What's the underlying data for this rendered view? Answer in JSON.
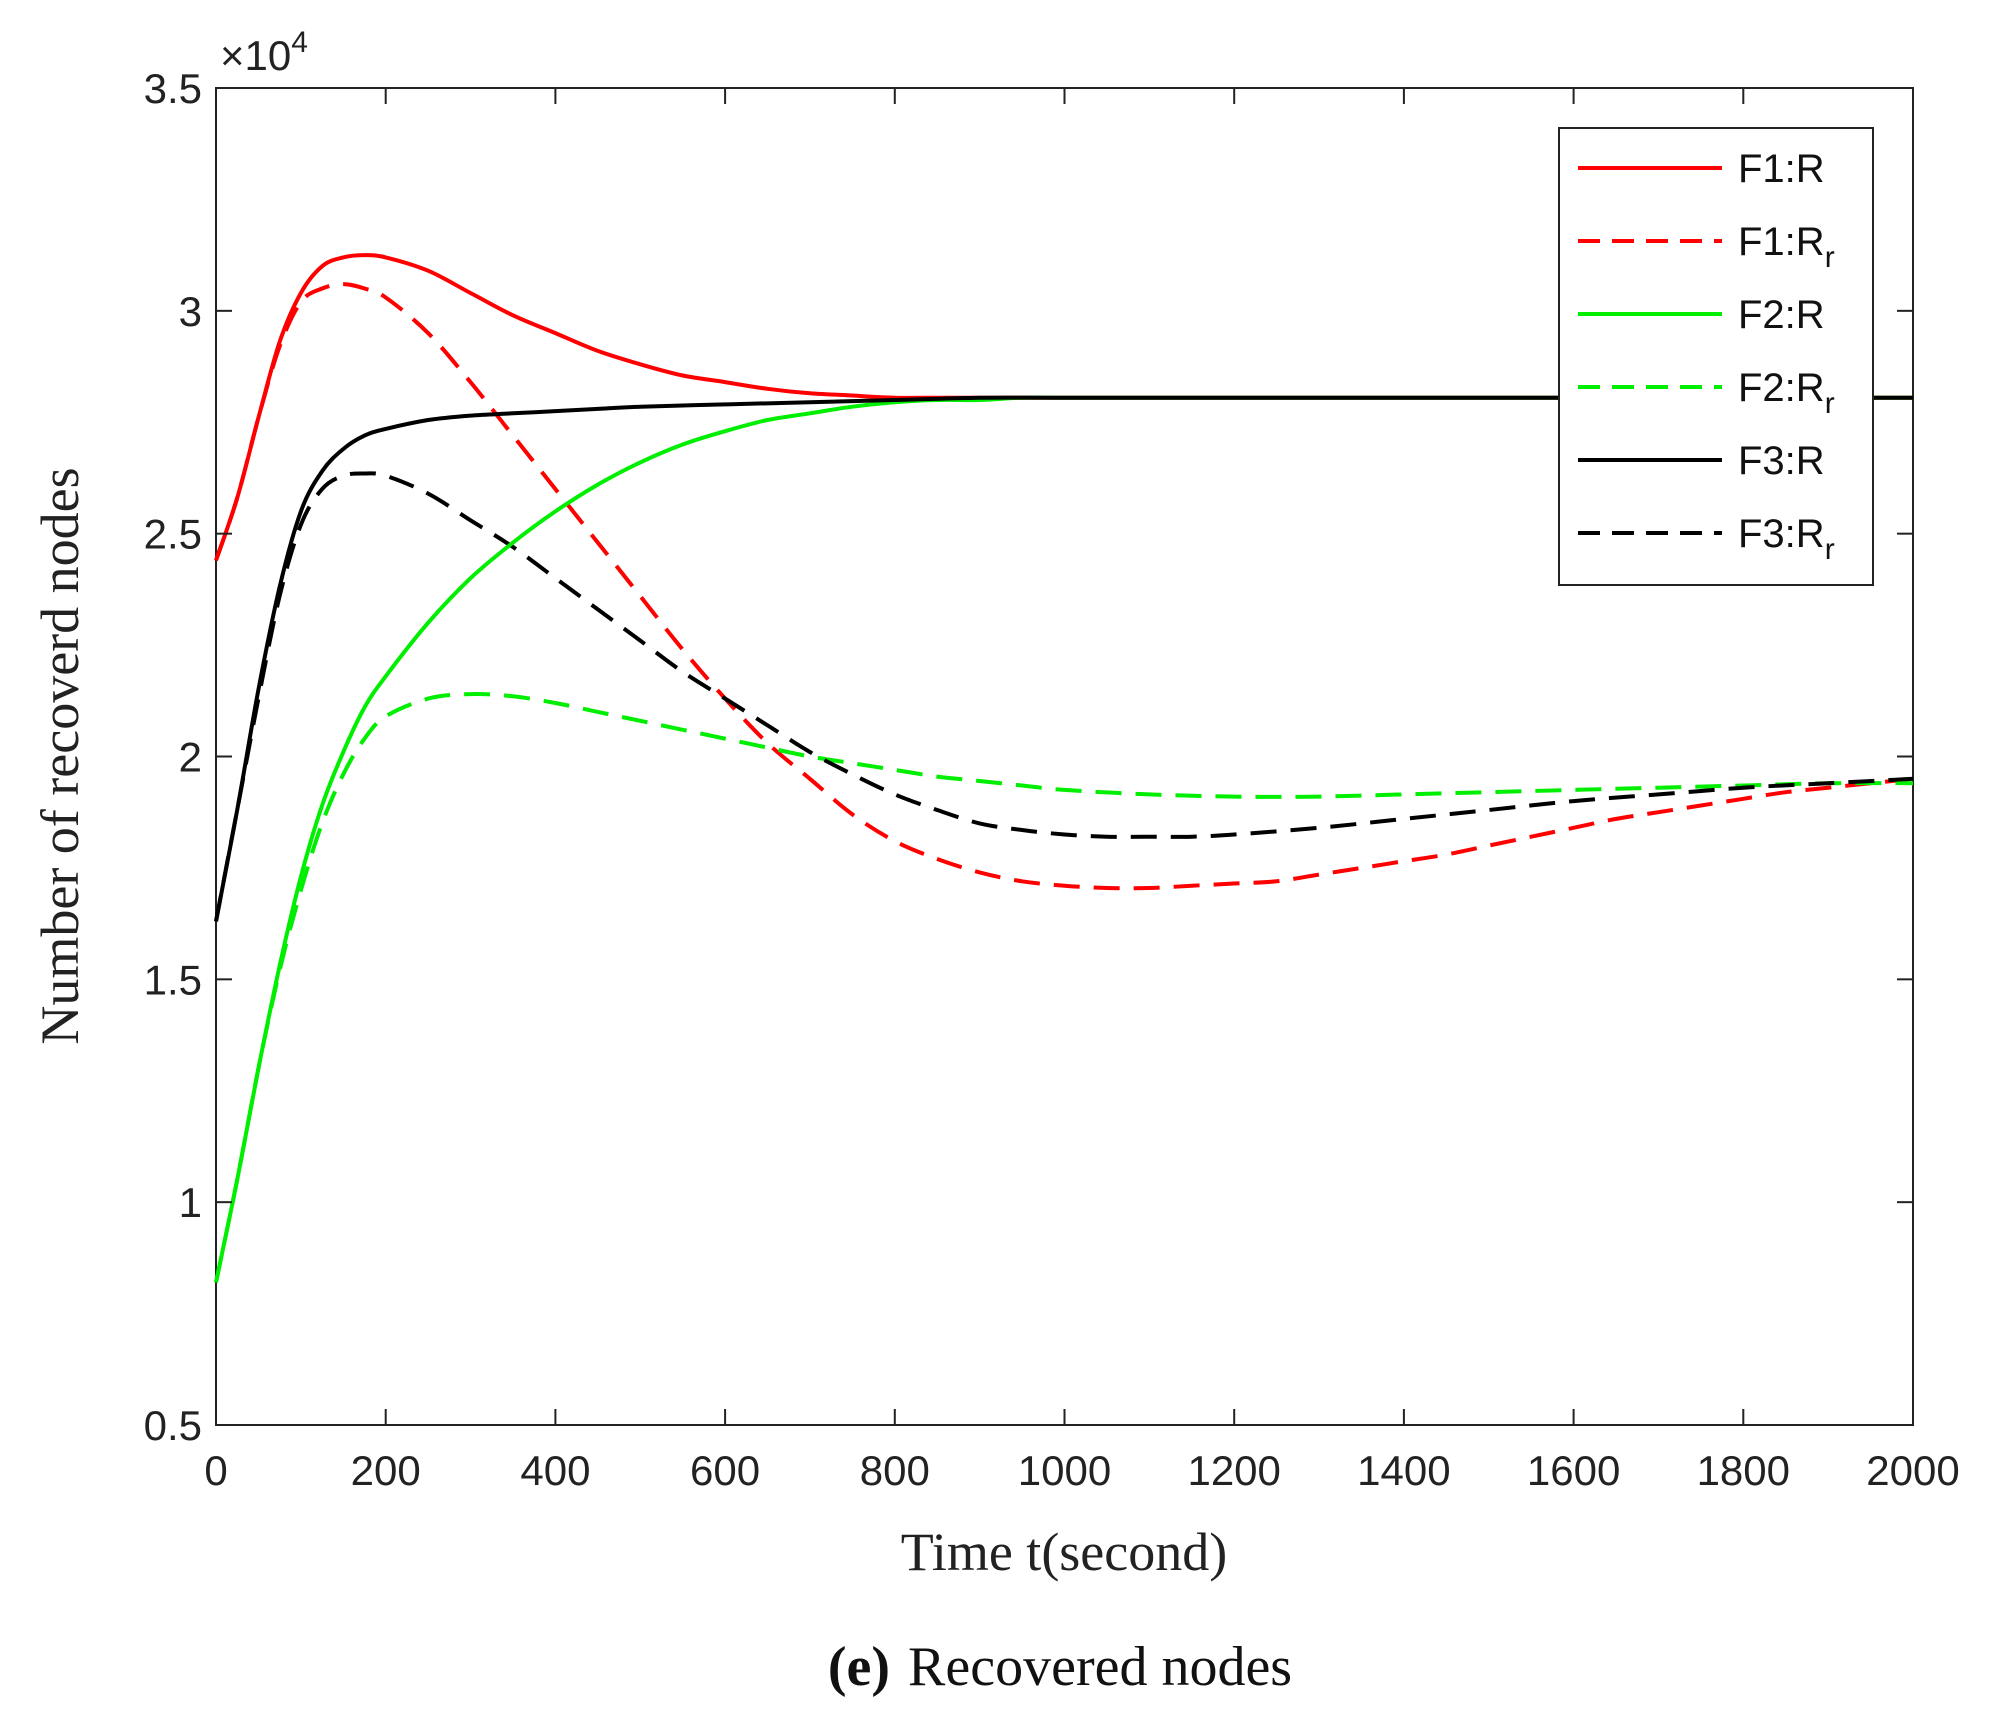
{
  "chart_data": {
    "type": "line",
    "title": "",
    "xlabel": "Time t(second)",
    "ylabel": "Number of recoverd nodes",
    "y_multiplier_label": "×10",
    "y_multiplier_exponent": "4",
    "xlim": [
      0,
      2000
    ],
    "ylim": [
      0.5,
      3.5
    ],
    "xticks": [
      0,
      200,
      400,
      600,
      800,
      1000,
      1200,
      1400,
      1600,
      1800,
      2000
    ],
    "xtick_labels": [
      "0",
      "200",
      "400",
      "600",
      "800",
      "1000",
      "1200",
      "1400",
      "1600",
      "1800",
      "2000"
    ],
    "yticks": [
      0.5,
      1,
      1.5,
      2,
      2.5,
      3,
      3.5
    ],
    "ytick_labels": [
      "0.5",
      "1",
      "1.5",
      "2",
      "2.5",
      "3",
      "3.5"
    ],
    "grid": false,
    "legend_position": "top-right",
    "series": [
      {
        "name": "F1:R",
        "legend_base": "F1:R",
        "legend_sub": "",
        "color": "#ff0000",
        "dash": "solid",
        "x": [
          0,
          25,
          50,
          75,
          100,
          125,
          150,
          175,
          200,
          250,
          300,
          350,
          400,
          450,
          500,
          550,
          600,
          650,
          700,
          750,
          800,
          850,
          900,
          950,
          1000,
          1100,
          1200,
          1400,
          1600,
          1800,
          2000
        ],
        "y": [
          2.44,
          2.58,
          2.76,
          2.93,
          3.04,
          3.1,
          3.12,
          3.125,
          3.12,
          3.09,
          3.04,
          2.99,
          2.95,
          2.91,
          2.88,
          2.855,
          2.84,
          2.825,
          2.815,
          2.81,
          2.805,
          2.805,
          2.805,
          2.805,
          2.805,
          2.805,
          2.805,
          2.805,
          2.805,
          2.805,
          2.805
        ]
      },
      {
        "name": "F1:Rr",
        "legend_base": "F1:R",
        "legend_sub": "r",
        "color": "#ff0000",
        "dash": "dashed",
        "x": [
          0,
          25,
          50,
          75,
          100,
          125,
          150,
          175,
          200,
          250,
          300,
          350,
          400,
          450,
          500,
          550,
          600,
          650,
          700,
          750,
          800,
          850,
          900,
          950,
          1000,
          1050,
          1100,
          1150,
          1200,
          1250,
          1300,
          1350,
          1400,
          1450,
          1500,
          1550,
          1600,
          1650,
          1700,
          1750,
          1800,
          1850,
          1900,
          1950,
          2000
        ],
        "y": [
          2.44,
          2.58,
          2.76,
          2.92,
          3.02,
          3.05,
          3.06,
          3.05,
          3.03,
          2.95,
          2.84,
          2.72,
          2.6,
          2.48,
          2.36,
          2.24,
          2.13,
          2.03,
          1.95,
          1.87,
          1.81,
          1.77,
          1.74,
          1.72,
          1.71,
          1.705,
          1.705,
          1.71,
          1.715,
          1.72,
          1.735,
          1.75,
          1.765,
          1.78,
          1.8,
          1.82,
          1.84,
          1.86,
          1.875,
          1.89,
          1.905,
          1.92,
          1.93,
          1.94,
          1.95
        ]
      },
      {
        "name": "F2:R",
        "legend_base": "F2:R",
        "legend_sub": "",
        "color": "#00ee00",
        "dash": "solid",
        "x": [
          0,
          25,
          50,
          75,
          100,
          125,
          150,
          175,
          200,
          250,
          300,
          350,
          400,
          450,
          500,
          550,
          600,
          650,
          700,
          750,
          800,
          850,
          900,
          950,
          1000,
          1100,
          1200,
          1400,
          1600,
          1800,
          2000
        ],
        "y": [
          0.82,
          1.05,
          1.3,
          1.53,
          1.73,
          1.89,
          2.01,
          2.11,
          2.18,
          2.3,
          2.4,
          2.48,
          2.55,
          2.61,
          2.66,
          2.7,
          2.73,
          2.755,
          2.77,
          2.785,
          2.795,
          2.8,
          2.8,
          2.805,
          2.805,
          2.805,
          2.805,
          2.805,
          2.805,
          2.805,
          2.805
        ]
      },
      {
        "name": "F2:Rr",
        "legend_base": "F2:R",
        "legend_sub": "r",
        "color": "#00ee00",
        "dash": "dashed",
        "x": [
          0,
          25,
          50,
          75,
          100,
          125,
          150,
          175,
          200,
          250,
          300,
          350,
          400,
          450,
          500,
          550,
          600,
          650,
          700,
          750,
          800,
          850,
          900,
          950,
          1000,
          1100,
          1200,
          1300,
          1400,
          1500,
          1600,
          1700,
          1800,
          1900,
          2000
        ],
        "y": [
          0.82,
          1.05,
          1.3,
          1.52,
          1.7,
          1.85,
          1.96,
          2.04,
          2.09,
          2.13,
          2.14,
          2.135,
          2.12,
          2.1,
          2.08,
          2.06,
          2.04,
          2.02,
          2.0,
          1.985,
          1.97,
          1.955,
          1.945,
          1.935,
          1.925,
          1.915,
          1.91,
          1.91,
          1.915,
          1.92,
          1.925,
          1.93,
          1.935,
          1.94,
          1.94
        ]
      },
      {
        "name": "F3:R",
        "legend_base": "F3:R",
        "legend_sub": "",
        "color": "#000000",
        "dash": "solid",
        "x": [
          0,
          25,
          50,
          75,
          100,
          125,
          150,
          175,
          200,
          250,
          300,
          350,
          400,
          450,
          500,
          600,
          700,
          800,
          900,
          1000,
          1200,
          1400,
          1600,
          1800,
          2000
        ],
        "y": [
          1.63,
          1.88,
          2.15,
          2.38,
          2.55,
          2.64,
          2.69,
          2.72,
          2.735,
          2.755,
          2.765,
          2.77,
          2.775,
          2.78,
          2.785,
          2.79,
          2.795,
          2.8,
          2.805,
          2.805,
          2.805,
          2.805,
          2.805,
          2.805,
          2.805
        ]
      },
      {
        "name": "F3:Rr",
        "legend_base": "F3:R",
        "legend_sub": "r",
        "color": "#000000",
        "dash": "dashed",
        "x": [
          0,
          25,
          50,
          75,
          100,
          125,
          150,
          175,
          200,
          250,
          300,
          350,
          400,
          450,
          500,
          550,
          600,
          650,
          700,
          750,
          800,
          850,
          900,
          950,
          1000,
          1050,
          1100,
          1150,
          1200,
          1300,
          1400,
          1500,
          1600,
          1700,
          1800,
          1900,
          2000
        ],
        "y": [
          1.63,
          1.88,
          2.13,
          2.36,
          2.52,
          2.6,
          2.63,
          2.635,
          2.63,
          2.59,
          2.53,
          2.47,
          2.4,
          2.33,
          2.26,
          2.19,
          2.13,
          2.07,
          2.01,
          1.96,
          1.915,
          1.88,
          1.85,
          1.835,
          1.825,
          1.82,
          1.82,
          1.82,
          1.825,
          1.84,
          1.86,
          1.88,
          1.9,
          1.915,
          1.93,
          1.94,
          1.95
        ]
      }
    ]
  },
  "caption": {
    "prefix": "(e)",
    "text": "Recovered nodes"
  }
}
